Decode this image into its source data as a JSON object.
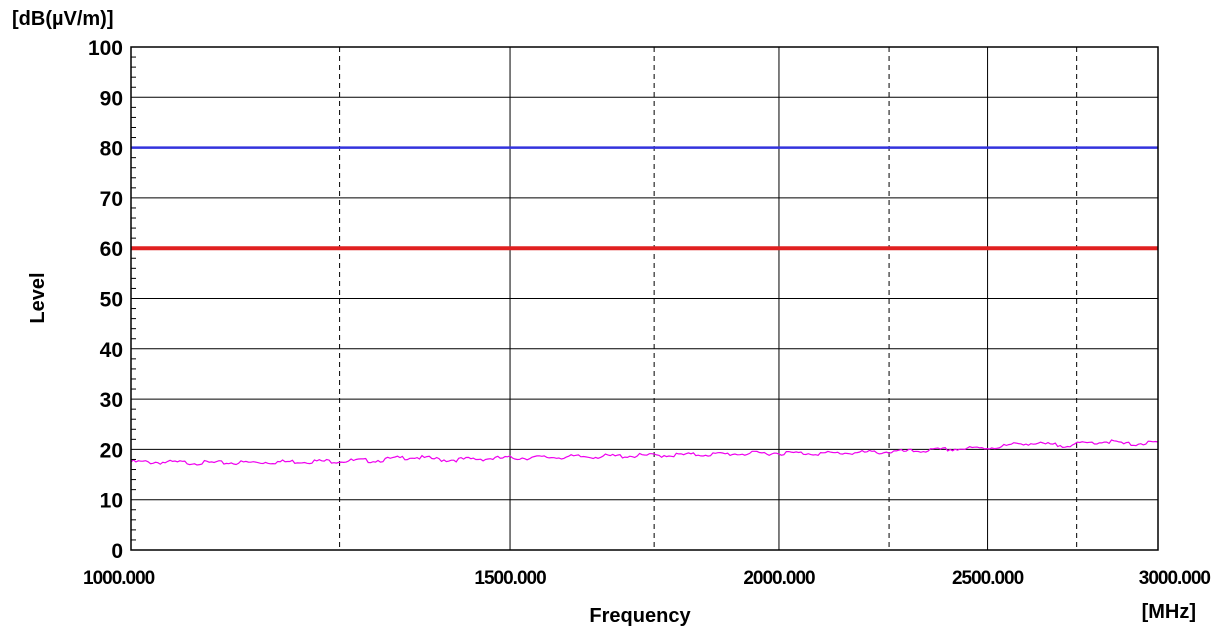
{
  "chart_data": {
    "type": "line",
    "unit_label": "[dB(µV/m)]",
    "ylabel": "Level",
    "xlabel": "Frequency",
    "x_unit_label": "[MHz]",
    "xscale": "log",
    "xlim": [
      1000,
      3000
    ],
    "ylim": [
      0,
      100
    ],
    "grid": true,
    "x_ticks": [
      {
        "value": 1000,
        "label": "1000.000",
        "style": "solid",
        "labeled": true
      },
      {
        "value": 1250,
        "label": "",
        "style": "dashed",
        "labeled": false
      },
      {
        "value": 1500,
        "label": "1500.000",
        "style": "solid",
        "labeled": true
      },
      {
        "value": 1750,
        "label": "",
        "style": "dashed",
        "labeled": false
      },
      {
        "value": 2000,
        "label": "2000.000",
        "style": "solid",
        "labeled": true
      },
      {
        "value": 2250,
        "label": "",
        "style": "dashed",
        "labeled": false
      },
      {
        "value": 2500,
        "label": "2500.000",
        "style": "solid",
        "labeled": true
      },
      {
        "value": 2750,
        "label": "",
        "style": "dashed",
        "labeled": false
      },
      {
        "value": 3000,
        "label": "3000.000",
        "style": "solid",
        "labeled": true
      }
    ],
    "y_ticks": [
      {
        "value": 0,
        "label": "0"
      },
      {
        "value": 10,
        "label": "10"
      },
      {
        "value": 20,
        "label": "20"
      },
      {
        "value": 30,
        "label": "30"
      },
      {
        "value": 40,
        "label": "40"
      },
      {
        "value": 50,
        "label": "50"
      },
      {
        "value": 60,
        "label": "60"
      },
      {
        "value": 70,
        "label": "70"
      },
      {
        "value": 80,
        "label": "80"
      },
      {
        "value": 90,
        "label": "90"
      },
      {
        "value": 100,
        "label": "100"
      }
    ],
    "series": [
      {
        "color": "#3333dd",
        "style": "limit",
        "x": [
          1000,
          3000
        ],
        "values": [
          80,
          80
        ]
      },
      {
        "color": "#e02020",
        "style": "limit",
        "x": [
          1000,
          3000
        ],
        "values": [
          60,
          60
        ]
      },
      {
        "color": "#ee00ee",
        "style": "trace",
        "x": [
          1000,
          1100,
          1200,
          1300,
          1350,
          1400,
          1500,
          1600,
          1700,
          1800,
          1900,
          2000,
          2100,
          2200,
          2300,
          2400,
          2500,
          2550,
          2600,
          2650,
          2700,
          2750,
          2800,
          2850,
          2900,
          2950,
          3000
        ],
        "values": [
          17.5,
          17.3,
          17.6,
          17.8,
          18.5,
          17.9,
          18.3,
          18.5,
          18.7,
          18.9,
          19.1,
          19.3,
          19.2,
          19.4,
          19.6,
          20.0,
          20.3,
          20.7,
          21.3,
          21.0,
          20.8,
          21.0,
          21.4,
          21.6,
          21.0,
          21.2,
          21.3
        ]
      }
    ]
  }
}
